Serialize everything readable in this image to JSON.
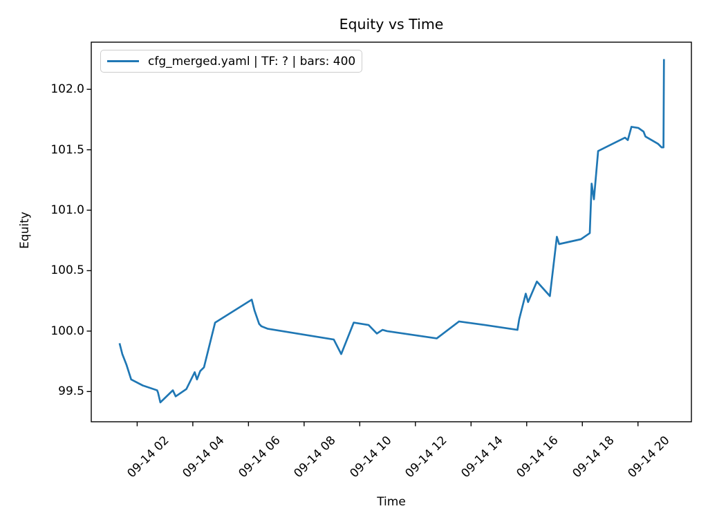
{
  "figure": {
    "title": "Equity vs Time",
    "xlabel": "Time",
    "ylabel": "Equity",
    "legend": {
      "label": "cfg_merged.yaml | TF: ? | bars: 400"
    }
  },
  "chart_data": {
    "type": "line",
    "title": "Equity vs Time",
    "xlabel": "Time",
    "ylabel": "Equity",
    "grid": false,
    "legend_position": "upper left",
    "legend_entries": [
      "cfg_merged.yaml | TF: ? | bars: 400"
    ],
    "line_color": "#1f77b4",
    "frame_color": "#000000",
    "x_tick_labels": [
      "09-14 02",
      "09-14 04",
      "09-14 06",
      "09-14 08",
      "09-14 10",
      "09-14 12",
      "09-14 14",
      "09-14 16",
      "09-14 18",
      "09-14 20"
    ],
    "y_ticks": [
      99.5,
      100.0,
      100.5,
      101.0,
      101.5,
      102.0
    ],
    "y_tick_labels": [
      "99.5",
      "100.0",
      "100.5",
      "101.0",
      "101.5",
      "102.0"
    ],
    "xlim_hours": [
      0.35,
      21.92
    ],
    "ylim": [
      99.25,
      102.39
    ],
    "series": [
      {
        "name": "cfg_merged.yaml | TF: ? | bars: 400",
        "color": "#1f77b4",
        "points": [
          [
            "09-14 01:22",
            99.9
          ],
          [
            "09-14 01:28",
            99.81
          ],
          [
            "09-14 01:37",
            99.72
          ],
          [
            "09-14 01:47",
            99.6
          ],
          [
            "09-14 02:12",
            99.55
          ],
          [
            "09-14 02:43",
            99.51
          ],
          [
            "09-14 02:45",
            99.49
          ],
          [
            "09-14 02:50",
            99.41
          ],
          [
            "09-14 03:17",
            99.51
          ],
          [
            "09-14 03:23",
            99.46
          ],
          [
            "09-14 03:46",
            99.52
          ],
          [
            "09-14 04:04",
            99.66
          ],
          [
            "09-14 04:09",
            99.6
          ],
          [
            "09-14 04:16",
            99.67
          ],
          [
            "09-14 04:24",
            99.7
          ],
          [
            "09-14 04:48",
            100.07
          ],
          [
            "09-14 06:07",
            100.26
          ],
          [
            "09-14 06:13",
            100.17
          ],
          [
            "09-14 06:23",
            100.06
          ],
          [
            "09-14 06:28",
            100.04
          ],
          [
            "09-14 06:41",
            100.02
          ],
          [
            "09-14 08:00",
            99.97
          ],
          [
            "09-14 09:04",
            99.93
          ],
          [
            "09-14 09:20",
            99.81
          ],
          [
            "09-14 09:47",
            100.07
          ],
          [
            "09-14 10:19",
            100.05
          ],
          [
            "09-14 10:37",
            99.98
          ],
          [
            "09-14 10:49",
            100.01
          ],
          [
            "09-14 10:59",
            100.0
          ],
          [
            "09-14 12:46",
            99.94
          ],
          [
            "09-14 13:34",
            100.08
          ],
          [
            "09-14 14:30",
            100.05
          ],
          [
            "09-14 15:40",
            100.01
          ],
          [
            "09-14 15:44",
            100.1
          ],
          [
            "09-14 15:58",
            100.31
          ],
          [
            "09-14 16:03",
            100.24
          ],
          [
            "09-14 16:22",
            100.41
          ],
          [
            "09-14 16:50",
            100.29
          ],
          [
            "09-14 17:05",
            100.78
          ],
          [
            "09-14 17:10",
            100.72
          ],
          [
            "09-14 17:57",
            100.76
          ],
          [
            "09-14 18:16",
            100.81
          ],
          [
            "09-14 18:20",
            101.22
          ],
          [
            "09-14 18:25",
            101.09
          ],
          [
            "09-14 18:34",
            101.49
          ],
          [
            "09-14 19:32",
            101.6
          ],
          [
            "09-14 19:38",
            101.58
          ],
          [
            "09-14 19:46",
            101.69
          ],
          [
            "09-14 20:01",
            101.68
          ],
          [
            "09-14 20:12",
            101.65
          ],
          [
            "09-14 20:16",
            101.61
          ],
          [
            "09-14 20:43",
            101.55
          ],
          [
            "09-14 20:51",
            101.52
          ],
          [
            "09-14 20:55",
            101.52
          ],
          [
            "09-14 20:56",
            102.25
          ]
        ]
      }
    ]
  }
}
